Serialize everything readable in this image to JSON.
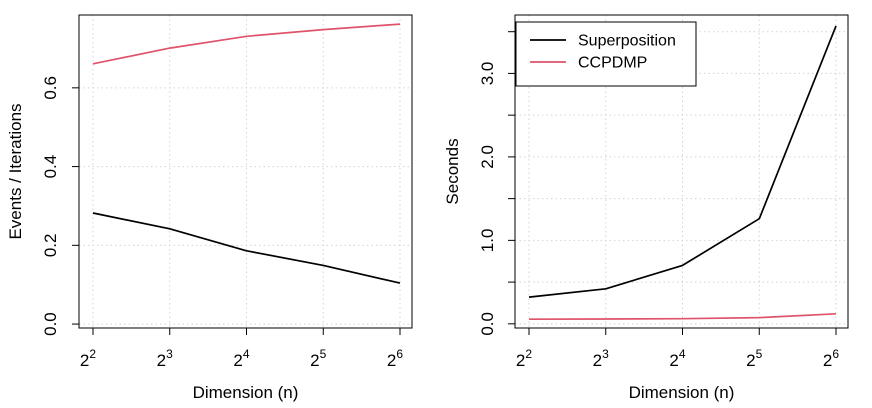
{
  "chart_data": [
    {
      "type": "line",
      "title": "",
      "xlabel": "Dimension (n)",
      "ylabel": "Events / Iterations",
      "x_tick_base": "2",
      "x_exponents": [
        "2",
        "3",
        "4",
        "5",
        "6"
      ],
      "x": [
        4,
        8,
        16,
        32,
        64
      ],
      "ylim": [
        -0.01,
        0.785
      ],
      "y_ticks": [
        0.0,
        0.2,
        0.4,
        0.6
      ],
      "y_tick_labels": [
        "0.0",
        "0.2",
        "0.4",
        "0.6"
      ],
      "grid": true,
      "series": [
        {
          "name": "Superposition",
          "color": "#000000",
          "values": [
            0.282,
            0.242,
            0.186,
            0.149,
            0.104
          ]
        },
        {
          "name": "CCPDMP",
          "color": "#DF536B",
          "values": [
            0.661,
            0.701,
            0.731,
            0.748,
            0.762
          ]
        }
      ]
    },
    {
      "type": "line",
      "title": "",
      "xlabel": "Dimension (n)",
      "ylabel": "Seconds",
      "x_tick_base": "2",
      "x_exponents": [
        "2",
        "3",
        "4",
        "5",
        "6"
      ],
      "x": [
        4,
        8,
        16,
        32,
        64
      ],
      "ylim": [
        -0.05,
        3.7
      ],
      "y_ticks": [
        0.0,
        0.5,
        1.0,
        1.5,
        2.0,
        2.5,
        3.0,
        3.5
      ],
      "y_tick_labels": [
        "0.0",
        "",
        "1.0",
        "",
        "2.0",
        "",
        "3.0",
        ""
      ],
      "grid": true,
      "legend": {
        "position": "top-left",
        "entries": [
          "Superposition",
          "CCPDMP"
        ]
      },
      "series": [
        {
          "name": "Superposition",
          "color": "#000000",
          "values": [
            0.32,
            0.42,
            0.7,
            1.26,
            3.57
          ]
        },
        {
          "name": "CCPDMP",
          "color": "#DF536B",
          "values": [
            0.055,
            0.058,
            0.062,
            0.075,
            0.12
          ]
        }
      ]
    }
  ]
}
